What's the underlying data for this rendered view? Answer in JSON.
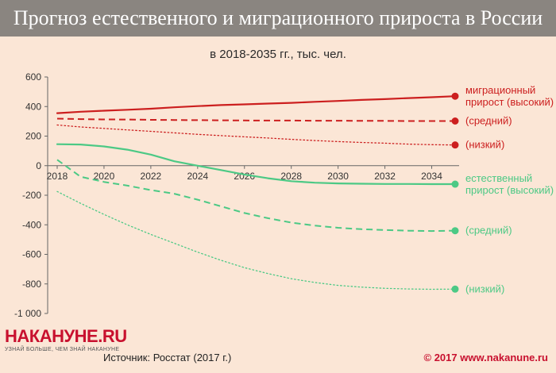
{
  "header": {
    "title": "Прогноз естественного и миграционного прироста в России"
  },
  "subtitle": "в 2018-2035 гг., тыс. чел.",
  "footer": {
    "brand": "НАКАНУНЕ.RU",
    "tagline": "УЗНАЙ БОЛЬШЕ, ЧЕМ ЗНАЙ НАКАНУНЕ",
    "source": "Источник: Росстат (2017 г.)",
    "copyright": "© 2017 www.nakanune.ru"
  },
  "colors": {
    "migration": "#cc1f1f",
    "natural": "#4cc985",
    "header_bg": "#8a8580",
    "page_bg": "#fbe6d6"
  },
  "chart_data": {
    "type": "line",
    "ylim": [
      -1000,
      600
    ],
    "xlim": [
      2018,
      2035
    ],
    "yticks": [
      600,
      400,
      200,
      0,
      -200,
      -400,
      -600,
      -800,
      -1000
    ],
    "ytick_labels": [
      "600",
      "400",
      "200",
      "0",
      "-200",
      "-400",
      "-600",
      "-800",
      "-1 000"
    ],
    "xticks": [
      2018,
      2020,
      2022,
      2024,
      2026,
      2028,
      2030,
      2032,
      2034
    ],
    "xtick_labels": [
      "2018",
      "2020",
      "2022",
      "2024",
      "2026",
      "2028",
      "2030",
      "2032",
      "2034"
    ],
    "x": [
      2018,
      2019,
      2020,
      2021,
      2022,
      2023,
      2024,
      2025,
      2026,
      2027,
      2028,
      2029,
      2030,
      2031,
      2032,
      2033,
      2034,
      2035
    ],
    "series": [
      {
        "group": "migration",
        "style": "solid",
        "values": [
          355,
          365,
          372,
          378,
          385,
          395,
          403,
          410,
          415,
          420,
          425,
          432,
          438,
          445,
          450,
          457,
          463,
          470
        ],
        "label_lines": [
          "миграционный",
          "прирост (высокий)"
        ],
        "end_value": 470
      },
      {
        "group": "migration",
        "style": "dashed",
        "values": [
          318,
          315,
          313,
          312,
          310,
          309,
          308,
          307,
          306,
          305,
          305,
          304,
          304,
          303,
          303,
          302,
          302,
          302
        ],
        "label_lines": [
          "(средний)"
        ],
        "end_value": 302
      },
      {
        "group": "migration",
        "style": "dotted",
        "values": [
          275,
          262,
          252,
          242,
          232,
          222,
          212,
          203,
          195,
          187,
          178,
          170,
          163,
          157,
          152,
          146,
          142,
          140
        ],
        "label_lines": [
          "(низкий)"
        ],
        "end_value": 140
      },
      {
        "group": "natural",
        "style": "solid",
        "values": [
          145,
          143,
          130,
          108,
          75,
          30,
          0,
          -30,
          -60,
          -85,
          -105,
          -115,
          -120,
          -122,
          -124,
          -124,
          -125,
          -125
        ],
        "label_lines": [
          "естественный",
          "прирост (высокий)"
        ],
        "end_value": -125
      },
      {
        "group": "natural",
        "style": "dashed",
        "values": [
          40,
          -75,
          -110,
          -135,
          -165,
          -190,
          -230,
          -275,
          -320,
          -355,
          -385,
          -405,
          -420,
          -430,
          -435,
          -440,
          -442,
          -440
        ],
        "label_lines": [
          "(средний)"
        ],
        "end_value": -440
      },
      {
        "group": "natural",
        "style": "dotted",
        "values": [
          -175,
          -255,
          -330,
          -400,
          -465,
          -525,
          -585,
          -640,
          -690,
          -730,
          -765,
          -790,
          -810,
          -822,
          -830,
          -834,
          -836,
          -835
        ],
        "label_lines": [
          "(низкий)"
        ],
        "end_value": -835
      }
    ]
  }
}
